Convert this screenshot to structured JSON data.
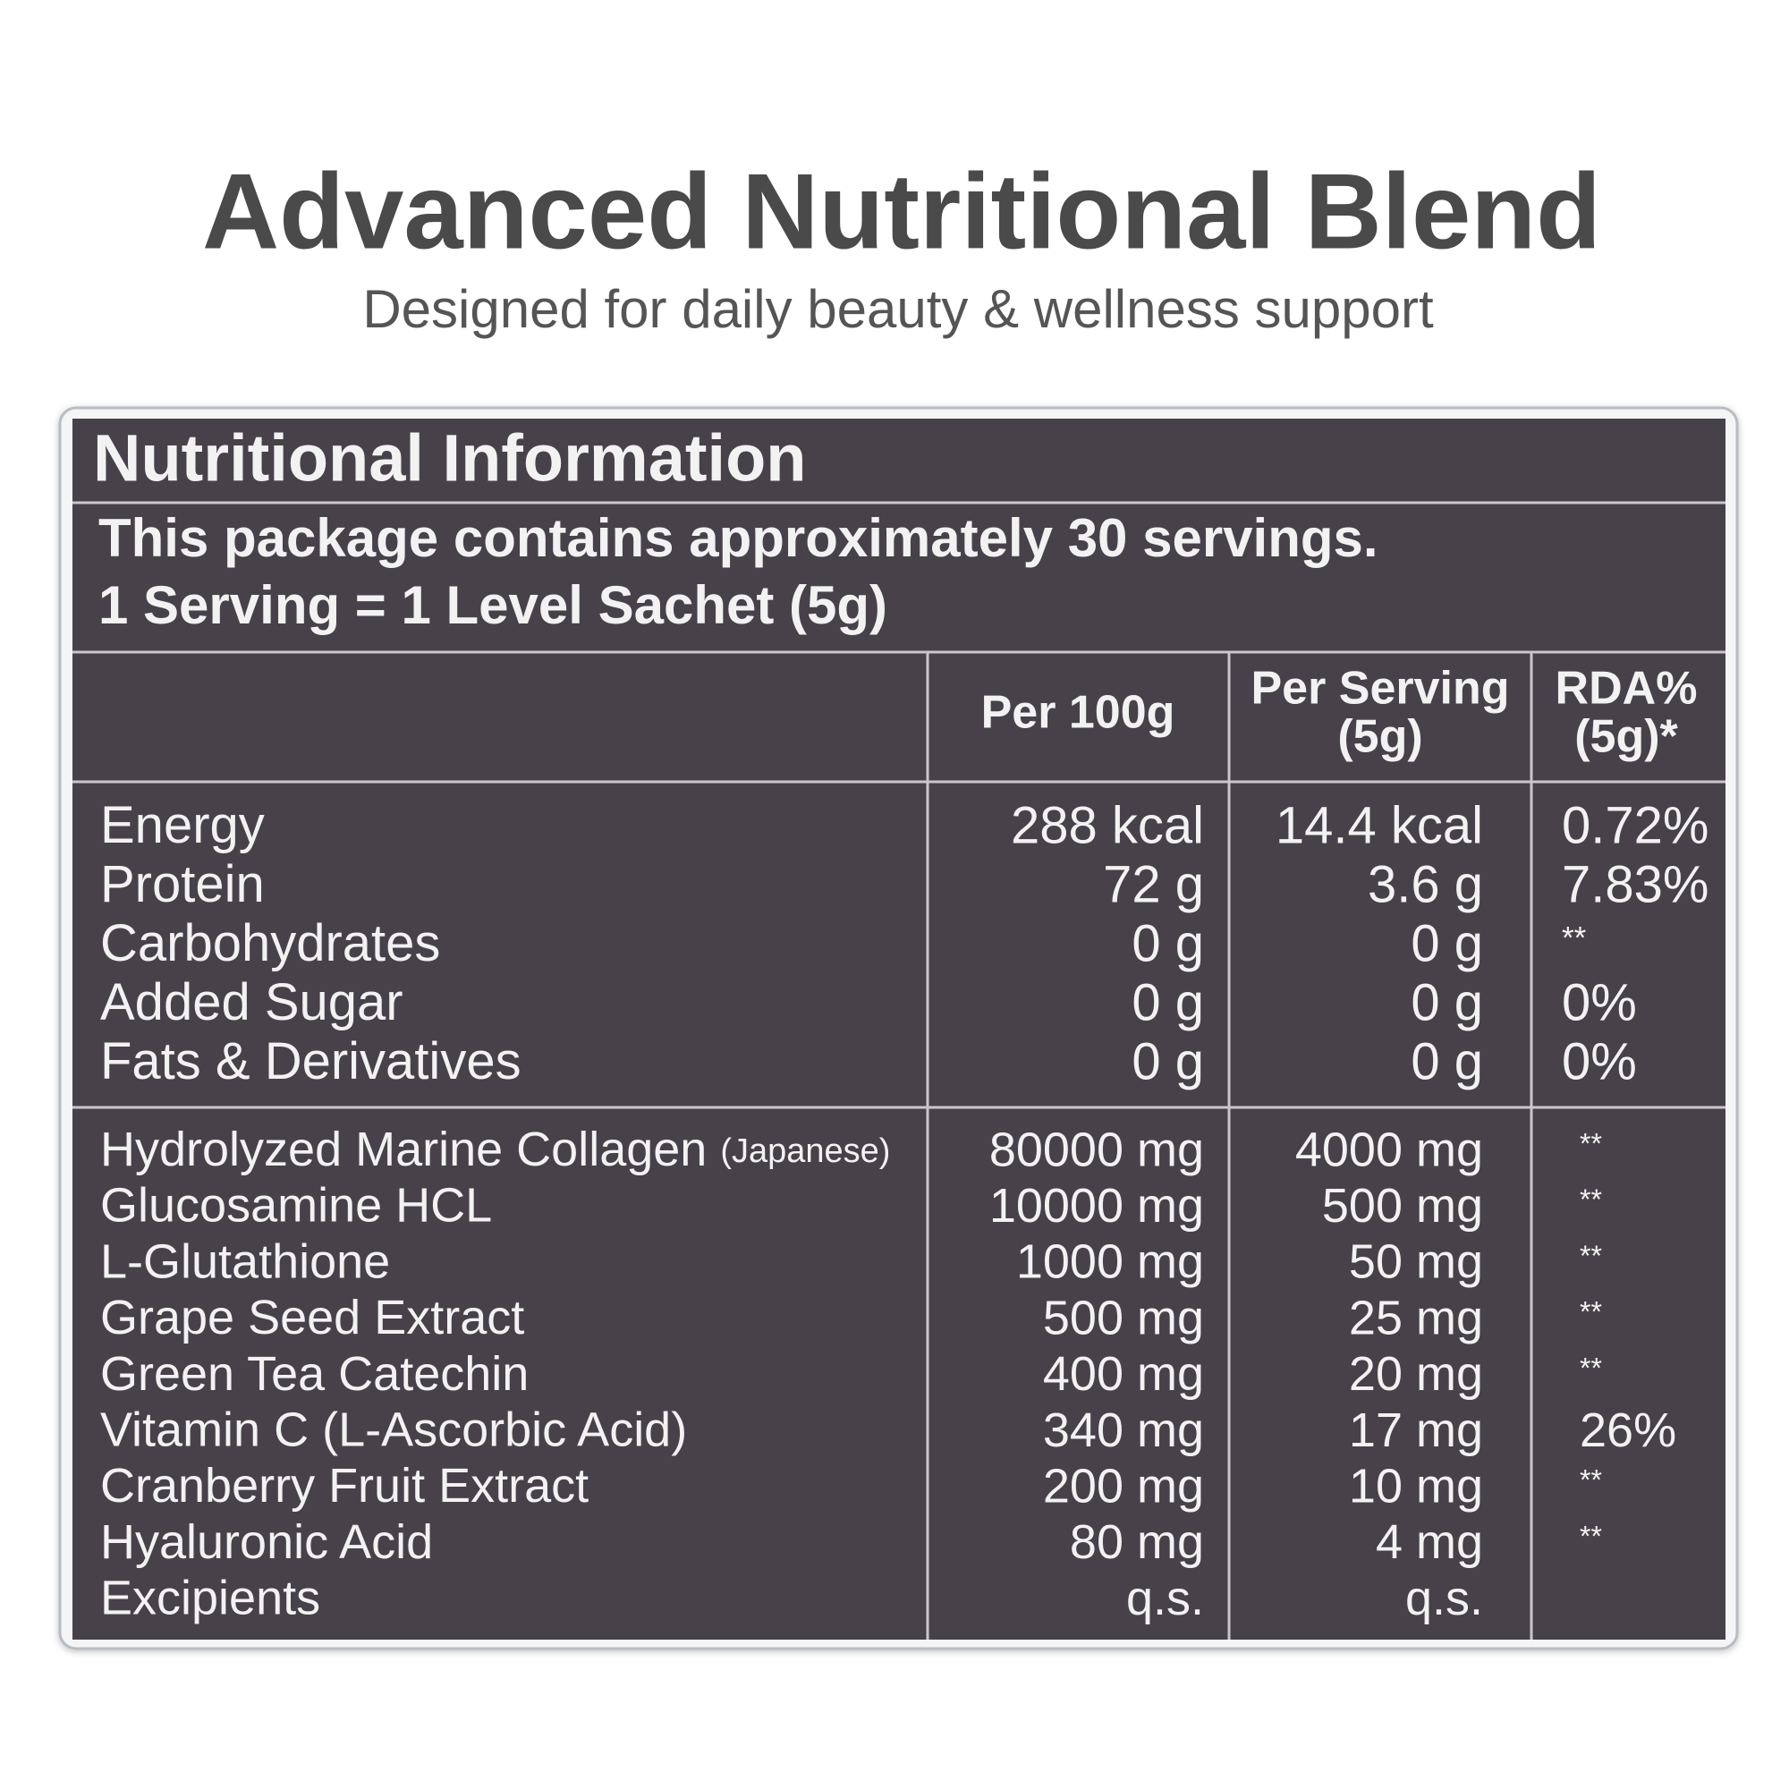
{
  "header": {
    "title": "Advanced Nutritional Blend",
    "subtitle": "Designed for daily beauty & wellness support"
  },
  "panel": {
    "heading": "Nutritional Information",
    "servings": [
      "This package contains approximately 30 servings.",
      "1 Serving = 1 Level Sachet (5g)"
    ],
    "columns": [
      [
        "Per 100g"
      ],
      [
        "Per Serving",
        "(5g)"
      ],
      [
        "RDA%",
        "(5g)*"
      ]
    ],
    "macros": [
      {
        "name": "Energy",
        "per100g": "288 kcal",
        "perServing": "14.4 kcal",
        "rda": "0.72%"
      },
      {
        "name": "Protein",
        "per100g": "72 g",
        "perServing": "3.6 g",
        "rda": "7.83%"
      },
      {
        "name": "Carbohydrates",
        "per100g": "0 g",
        "perServing": "0 g",
        "rda": "**"
      },
      {
        "name": "Added Sugar",
        "per100g": "0 g",
        "perServing": "0 g",
        "rda": "0%"
      },
      {
        "name": "Fats & Derivatives",
        "per100g": "0 g",
        "perServing": "0 g",
        "rda": "0%"
      }
    ],
    "ingredients": [
      {
        "name": "Hydrolyzed Marine Collagen",
        "note": "(Japanese)",
        "per100g": "80000 mg",
        "perServing": "4000 mg",
        "rda": "**"
      },
      {
        "name": "Glucosamine HCL",
        "per100g": "10000 mg",
        "perServing": "500 mg",
        "rda": "**"
      },
      {
        "name": "L-Glutathione",
        "per100g": "1000 mg",
        "perServing": "50 mg",
        "rda": "**"
      },
      {
        "name": "Grape Seed Extract",
        "per100g": "500 mg",
        "perServing": "25 mg",
        "rda": "**"
      },
      {
        "name": "Green Tea Catechin",
        "per100g": "400 mg",
        "perServing": "20 mg",
        "rda": "**"
      },
      {
        "name": "Vitamin C (L-Ascorbic Acid)",
        "per100g": "340 mg",
        "perServing": "17 mg",
        "rda": "26%"
      },
      {
        "name": "Cranberry Fruit Extract",
        "per100g": "200 mg",
        "perServing": "10 mg",
        "rda": "**"
      },
      {
        "name": "Hyaluronic Acid",
        "per100g": "80 mg",
        "perServing": "4 mg",
        "rda": "**"
      },
      {
        "name": "Excipients",
        "per100g": "q.s.",
        "perServing": "q.s."
      }
    ]
  }
}
